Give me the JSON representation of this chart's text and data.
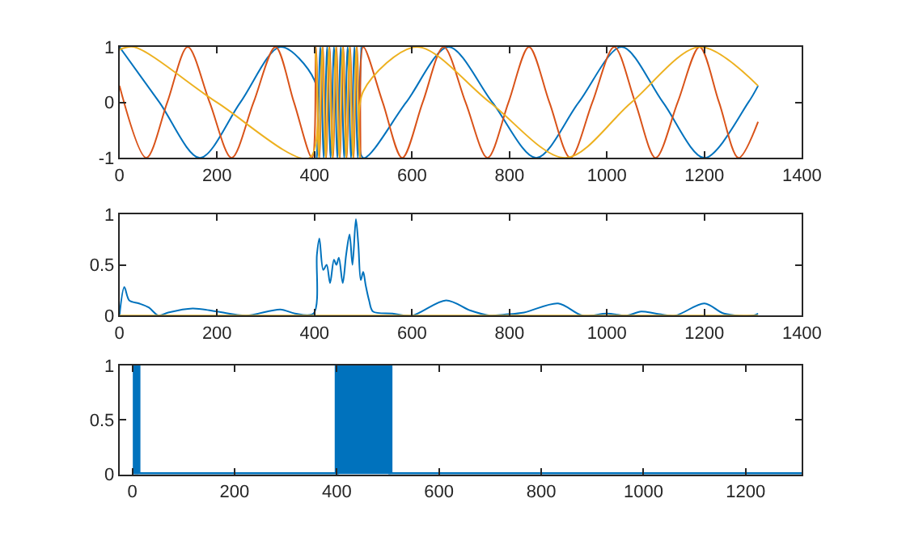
{
  "chart_data": [
    {
      "type": "line",
      "xlim": [
        0,
        1400
      ],
      "xticks": [
        0,
        200,
        400,
        600,
        800,
        1000,
        1200,
        1400
      ],
      "ylim": [
        -1,
        1
      ],
      "yticks": [
        -1,
        0,
        1
      ],
      "series": [
        {
          "color": "#0072bd",
          "x": [
            0,
            82,
            165,
            248,
            330,
            400,
            405,
            412,
            419,
            426,
            433,
            440,
            447,
            454,
            461,
            468,
            475,
            482,
            489,
            496,
            500,
            588,
            675,
            765,
            855,
            942,
            1030,
            1115,
            1200,
            1290,
            1310
          ],
          "values": [
            1,
            0,
            -1,
            0,
            1,
            0.4,
            -1,
            1,
            -1,
            1,
            -1,
            1,
            -1,
            1,
            -1,
            1,
            -1,
            1,
            -1,
            1,
            -1,
            0,
            1,
            0,
            -1,
            0,
            1,
            0,
            -1,
            0,
            0.3
          ]
        },
        {
          "color": "#d95319",
          "x": [
            0,
            55,
            98,
            140,
            185,
            230,
            275,
            320,
            358,
            395,
            403,
            410,
            417,
            424,
            431,
            438,
            445,
            452,
            459,
            466,
            473,
            480,
            487,
            494,
            500,
            540,
            580,
            622,
            665,
            710,
            755,
            798,
            840,
            882,
            925,
            970,
            1015,
            1058,
            1100,
            1145,
            1190,
            1230,
            1270,
            1310
          ],
          "values": [
            0.3,
            -1,
            0,
            1,
            0,
            -1,
            0,
            1,
            0,
            -1,
            1,
            -1,
            1,
            -1,
            1,
            -1,
            1,
            -1,
            1,
            -1,
            1,
            -1,
            1,
            -1,
            1,
            0,
            -1,
            0,
            1,
            0,
            -1,
            0,
            1,
            0,
            -1,
            0,
            1,
            0,
            -1,
            0,
            1,
            0,
            -1,
            -0.35
          ]
        },
        {
          "color": "#edb120",
          "x": [
            0,
            30,
            200,
            390,
            402,
            409,
            416,
            423,
            430,
            437,
            444,
            451,
            458,
            465,
            472,
            479,
            486,
            493,
            500,
            610,
            760,
            915,
            1050,
            1190,
            1310
          ],
          "values": [
            0.95,
            1,
            0,
            -1,
            1,
            -1,
            1,
            -1,
            1,
            -1,
            1,
            -1,
            1,
            -1,
            1,
            -1,
            1,
            -1,
            0.2,
            1,
            0,
            -1,
            0,
            1,
            0.3
          ]
        }
      ]
    },
    {
      "type": "line",
      "xlim": [
        0,
        1400
      ],
      "xticks": [
        0,
        200,
        400,
        600,
        800,
        1000,
        1200,
        1400
      ],
      "ylim": [
        0,
        1
      ],
      "yticks": [
        0,
        0.5,
        1
      ],
      "series": [
        {
          "color": "#0072bd",
          "x": [
            0,
            10,
            20,
            40,
            60,
            80,
            100,
            150,
            200,
            260,
            330,
            360,
            398,
            405,
            410,
            418,
            425,
            432,
            440,
            445,
            450,
            458,
            465,
            472,
            478,
            485,
            490,
            495,
            500,
            505,
            512,
            520,
            560,
            600,
            670,
            720,
            760,
            790,
            830,
            900,
            950,
            1000,
            1040,
            1070,
            1100,
            1140,
            1200,
            1240,
            1300,
            1310
          ],
          "values": [
            0,
            0.28,
            0.15,
            0.12,
            0.08,
            0,
            0.03,
            0.07,
            0.04,
            0,
            0.06,
            0.02,
            0.02,
            0.6,
            0.76,
            0.45,
            0.5,
            0.32,
            0.55,
            0.5,
            0.57,
            0.32,
            0.6,
            0.8,
            0.5,
            0.95,
            0.7,
            0.35,
            0.43,
            0.3,
            0.15,
            0.04,
            0.02,
            0,
            0.15,
            0.05,
            0,
            0.01,
            0.03,
            0.12,
            0,
            0.02,
            0,
            0.04,
            0.02,
            0,
            0.12,
            0.02,
            0,
            0.02
          ]
        },
        {
          "color": "#edb120",
          "x": [
            0,
            1310
          ],
          "values": [
            0,
            0
          ]
        }
      ]
    },
    {
      "type": "area",
      "xlim": [
        -25,
        1310
      ],
      "xticks": [
        0,
        200,
        400,
        600,
        800,
        1000,
        1200
      ],
      "ylim": [
        0,
        1
      ],
      "yticks": [
        0,
        0.5,
        1
      ],
      "series": [
        {
          "color": "#0072bd",
          "x": [
            0,
            5,
            5,
            12,
            12,
            400,
            400,
            505,
            505,
            1310
          ],
          "values": [
            0,
            0,
            1,
            1,
            0,
            0,
            1,
            1,
            0,
            0
          ]
        }
      ]
    }
  ]
}
